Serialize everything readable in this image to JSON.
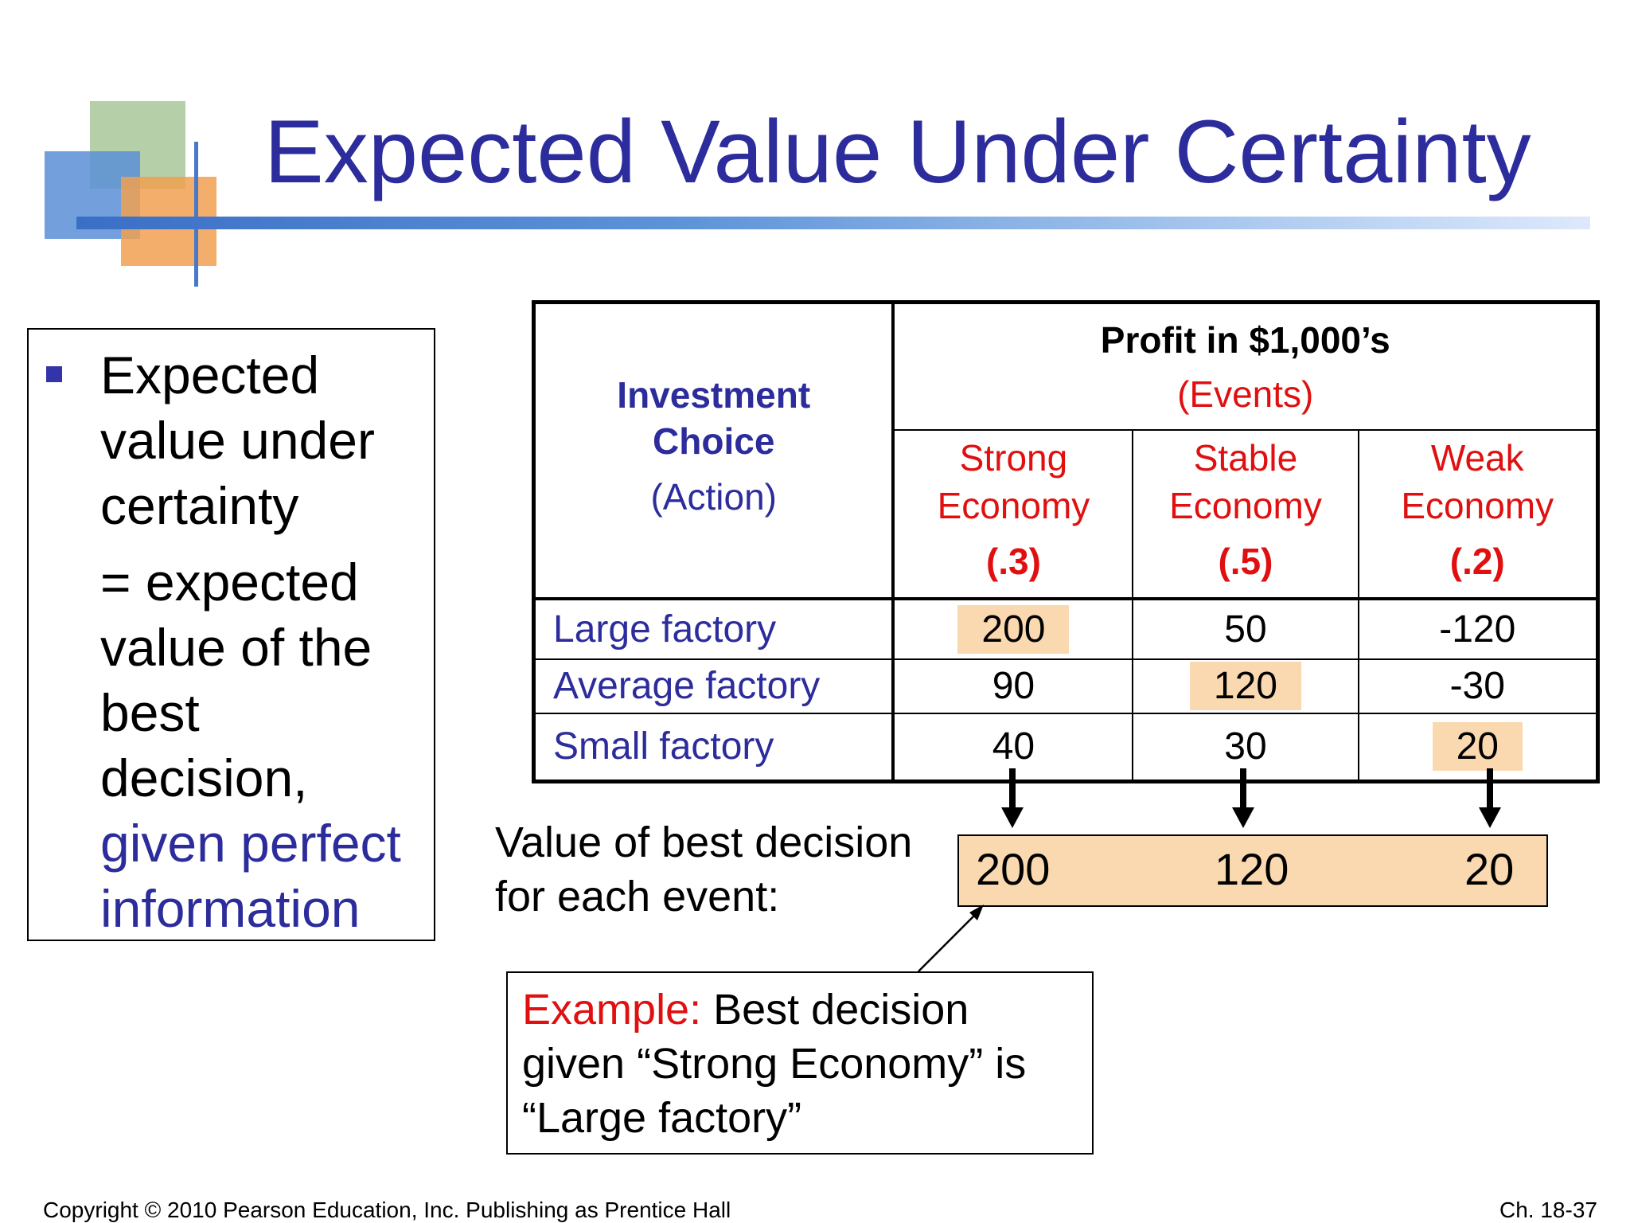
{
  "title": "Expected Value Under Certainty",
  "left_text": {
    "line1": "Expected",
    "line2": "value under",
    "line3": "certainty",
    "line4": "= expected",
    "line5": "value of the",
    "line6": "best",
    "line7": "decision,",
    "line8": "given perfect",
    "line9": "information"
  },
  "table": {
    "header_profit": "Profit in $1,000’s",
    "header_events": "(Events)",
    "header_choice_1": "Investment",
    "header_choice_2": "Choice",
    "header_action": "(Action)",
    "events": [
      {
        "name1": "Strong",
        "name2": "Economy",
        "prob": "(.3)"
      },
      {
        "name1": "Stable",
        "name2": "Economy",
        "prob": "(.5)"
      },
      {
        "name1": "Weak",
        "name2": "Economy",
        "prob": "(.2)"
      }
    ],
    "rows": [
      {
        "label": "Large factory",
        "values": [
          "200",
          "50",
          "-120"
        ]
      },
      {
        "label": "Average factory",
        "values": [
          "90",
          "120",
          "-30"
        ]
      },
      {
        "label": "Small factory",
        "values": [
          "40",
          "30",
          "20"
        ]
      }
    ]
  },
  "best_decision": {
    "label_1": "Value of best decision",
    "label_2": "for each event:",
    "values": [
      "200",
      "120",
      "20"
    ]
  },
  "example": {
    "prefix": "Example:",
    "line1_rest": " Best decision",
    "line2": "given “Strong Economy” is",
    "line3": "“Large factory”"
  },
  "footer": {
    "copyright": "Copyright © 2010 Pearson Education, Inc. Publishing as Prentice Hall",
    "page": "Ch. 18-37"
  },
  "colors": {
    "title": "#2c2c9c",
    "highlight": "#fbd9b0",
    "event_red": "#e01010"
  }
}
